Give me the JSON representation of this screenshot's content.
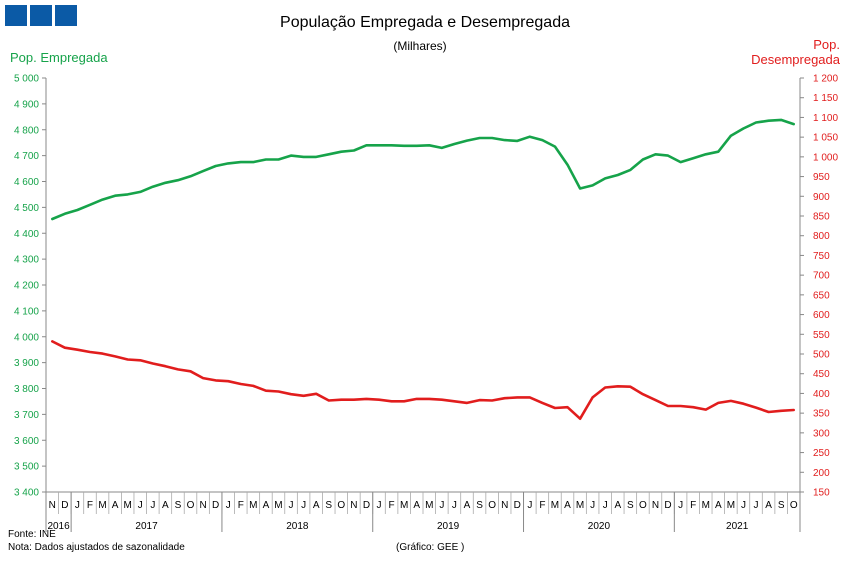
{
  "logo": {
    "color": "#0b5aa6"
  },
  "header": {
    "title": "População  Empregada  e  Desempregada",
    "subtitle": "(Milhares)"
  },
  "labels": {
    "left_axis": "Pop. Empregada",
    "right_axis_line1": "Pop.",
    "right_axis_line2": "Desempregada"
  },
  "footer": {
    "source": "Fonte: INE",
    "note": "Nota:  Dados ajustados de sazonalidade",
    "credit": "(Gráfico:  GEE )"
  },
  "chart_data": {
    "type": "line",
    "title": "População  Empregada  e  Desempregada",
    "subtitle": "(Milhares)",
    "colors": {
      "employed": "#16a34a",
      "unemployed": "#e11d1d"
    },
    "y_left": {
      "label": "Pop. Empregada",
      "range": [
        3400,
        5000
      ],
      "ticks": [
        "3 400",
        "3 500",
        "3 600",
        "3 700",
        "3 800",
        "3 900",
        "4 000",
        "4 100",
        "4 200",
        "4 300",
        "4 400",
        "4 500",
        "4 600",
        "4 700",
        "4 800",
        "4 900",
        "5 000"
      ]
    },
    "y_right": {
      "label": "Pop. Desempregada",
      "range": [
        150,
        1200
      ],
      "ticks": [
        "150",
        "200",
        "250",
        "300",
        "350",
        "400",
        "450",
        "500",
        "550",
        "600",
        "650",
        "700",
        "750",
        "800",
        "850",
        "900",
        "950",
        "1 000",
        "1 050",
        "1 100",
        "1 150",
        "1 200"
      ]
    },
    "month_labels": [
      "N",
      "D",
      "J",
      "F",
      "M",
      "A",
      "M",
      "J",
      "J",
      "A",
      "S",
      "O",
      "N",
      "D",
      "J",
      "F",
      "M",
      "A",
      "M",
      "J",
      "J",
      "A",
      "S",
      "O",
      "N",
      "D",
      "J",
      "F",
      "M",
      "A",
      "M",
      "J",
      "J",
      "A",
      "S",
      "O",
      "N",
      "D",
      "J",
      "F",
      "M",
      "A",
      "M",
      "J",
      "J",
      "A",
      "S",
      "O",
      "N",
      "D",
      "J",
      "F",
      "M",
      "A",
      "M",
      "J",
      "J",
      "A",
      "S",
      "O"
    ],
    "year_labels": [
      {
        "label": "2016",
        "start": 0,
        "end": 2
      },
      {
        "label": "2017",
        "start": 2,
        "end": 14
      },
      {
        "label": "2018",
        "start": 14,
        "end": 26
      },
      {
        "label": "2019",
        "start": 26,
        "end": 38
      },
      {
        "label": "2020",
        "start": 38,
        "end": 50
      },
      {
        "label": "2021",
        "start": 50,
        "end": 60
      }
    ],
    "grid": false,
    "series": [
      {
        "name": "Pop. Empregada",
        "axis": "left",
        "values": [
          4455,
          4475,
          4490,
          4510,
          4530,
          4545,
          4550,
          4560,
          4580,
          4595,
          4605,
          4620,
          4640,
          4660,
          4670,
          4675,
          4675,
          4685,
          4685,
          4700,
          4695,
          4695,
          4705,
          4715,
          4720,
          4740,
          4740,
          4740,
          4738,
          4738,
          4740,
          4730,
          4745,
          4758,
          4768,
          4768,
          4760,
          4757,
          4773,
          4760,
          4735,
          4665,
          4573,
          4585,
          4612,
          4625,
          4645,
          4685,
          4705,
          4700,
          4675,
          4690,
          4705,
          4715,
          4777,
          4805,
          4828,
          4835,
          4838,
          4822
        ]
      },
      {
        "name": "Pop. Desempregada",
        "axis": "right",
        "values": [
          532,
          516,
          511,
          505,
          501,
          494,
          486,
          484,
          476,
          469,
          461,
          456,
          439,
          433,
          431,
          424,
          419,
          407,
          405,
          398,
          394,
          399,
          382,
          384,
          384,
          386,
          384,
          380,
          380,
          386,
          386,
          384,
          380,
          376,
          383,
          382,
          388,
          390,
          390,
          376,
          363,
          365,
          336,
          390,
          415,
          418,
          417,
          398,
          383,
          368,
          368,
          365,
          359,
          376,
          381,
          374,
          364,
          353,
          356,
          358
        ]
      }
    ]
  }
}
